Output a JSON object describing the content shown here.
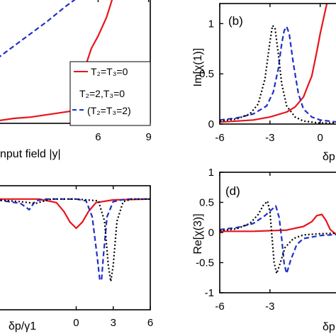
{
  "colors": {
    "red": "#e8141b",
    "blue": "#1f2fc6",
    "black": "#000000"
  },
  "legend": {
    "entries": [
      {
        "label": "T₂=T₃=0",
        "color": "#e8141b",
        "dash": "solid"
      },
      {
        "label": "T₂=2,T₃=0",
        "color": "#1f2fc6",
        "dash": "dashed"
      },
      {
        "label": "(T₂=T₃=2)",
        "color": "#1f2fc6",
        "dash": "none"
      }
    ]
  },
  "chart_data": [
    {
      "id": "a",
      "type": "line",
      "xlabel": "nput field |y|",
      "xlim": [
        0,
        9.1
      ],
      "ylim": [
        0,
        1
      ],
      "x_ticks": [
        6,
        9
      ],
      "x_tick_labels": [
        "6",
        "9"
      ],
      "series": [
        {
          "color": "#e8141b",
          "dash": "solid",
          "points": [
            [
              0.0,
              0.02
            ],
            [
              1.0,
              0.04
            ],
            [
              2.0,
              0.05
            ],
            [
              3.0,
              0.07
            ],
            [
              4.0,
              0.09
            ],
            [
              5.0,
              0.11
            ],
            [
              5.6,
              0.12
            ],
            [
              6.0,
              0.15
            ],
            [
              5.8,
              0.22
            ],
            [
              5.5,
              0.32
            ],
            [
              5.3,
              0.42
            ],
            [
              5.35,
              0.5
            ],
            [
              5.6,
              0.6
            ],
            [
              6.0,
              0.7
            ],
            [
              6.5,
              0.85
            ],
            [
              6.85,
              1.0
            ]
          ]
        },
        {
          "color": "#1f2fc6",
          "dash": "dashed",
          "points": [
            [
              0.0,
              0.52
            ],
            [
              1.0,
              0.62
            ],
            [
              2.0,
              0.72
            ],
            [
              3.0,
              0.82
            ],
            [
              4.0,
              0.93
            ],
            [
              4.7,
              1.0
            ]
          ]
        }
      ]
    },
    {
      "id": "b",
      "type": "line",
      "panel_label": "(b)",
      "ylabel": "Im[χ(1)]",
      "xlabel": "δp",
      "xlim": [
        -6,
        1.2
      ],
      "ylim": [
        0,
        1.2
      ],
      "x_ticks": [
        -6,
        -3,
        0
      ],
      "x_tick_labels": [
        "-6",
        "-3",
        "0"
      ],
      "y_ticks": [
        0,
        0.5,
        1
      ],
      "y_tick_labels": [
        "0",
        "0.5",
        "1"
      ],
      "series": [
        {
          "color": "#e8141b",
          "dash": "solid",
          "points": [
            [
              -6,
              0.02
            ],
            [
              -5,
              0.03
            ],
            [
              -4,
              0.04
            ],
            [
              -3,
              0.07
            ],
            [
              -2,
              0.12
            ],
            [
              -1.5,
              0.17
            ],
            [
              -1,
              0.27
            ],
            [
              -0.5,
              0.48
            ],
            [
              -0.2,
              0.72
            ],
            [
              0,
              0.9
            ],
            [
              0.2,
              1.05
            ],
            [
              0.4,
              1.2
            ]
          ]
        },
        {
          "color": "#1f2fc6",
          "dash": "dashed",
          "points": [
            [
              -6,
              0.04
            ],
            [
              -5,
              0.06
            ],
            [
              -4,
              0.1
            ],
            [
              -3.2,
              0.18
            ],
            [
              -2.8,
              0.32
            ],
            [
              -2.5,
              0.55
            ],
            [
              -2.3,
              0.8
            ],
            [
              -2.15,
              0.93
            ],
            [
              -2.0,
              0.97
            ],
            [
              -1.85,
              0.9
            ],
            [
              -1.6,
              0.6
            ],
            [
              -1.3,
              0.3
            ],
            [
              -1.0,
              0.15
            ],
            [
              -0.5,
              0.07
            ],
            [
              0,
              0.04
            ],
            [
              1,
              0.02
            ]
          ]
        },
        {
          "color": "#000000",
          "dash": "dotted",
          "points": [
            [
              -6,
              0.03
            ],
            [
              -5,
              0.05
            ],
            [
              -4.2,
              0.1
            ],
            [
              -3.7,
              0.2
            ],
            [
              -3.3,
              0.45
            ],
            [
              -3.0,
              0.82
            ],
            [
              -2.85,
              0.98
            ],
            [
              -2.7,
              0.96
            ],
            [
              -2.5,
              0.7
            ],
            [
              -2.3,
              0.4
            ],
            [
              -2.0,
              0.18
            ],
            [
              -1.5,
              0.07
            ],
            [
              -1,
              0.03
            ],
            [
              0,
              0.01
            ],
            [
              1,
              0.01
            ]
          ]
        }
      ]
    },
    {
      "id": "c",
      "type": "line",
      "xlabel": "δp/γ1",
      "xlim": [
        -6.4,
        6
      ],
      "ylim": [
        -1.25,
        0.15
      ],
      "x_ticks": [
        0,
        3,
        6
      ],
      "x_tick_labels": [
        "0",
        "3",
        "6"
      ],
      "series": [
        {
          "color": "#e8141b",
          "dash": "solid",
          "points": [
            [
              -6.4,
              0
            ],
            [
              -3,
              0
            ],
            [
              -1.6,
              -0.04
            ],
            [
              -1.0,
              -0.14
            ],
            [
              -0.5,
              -0.26
            ],
            [
              0,
              -0.33
            ],
            [
              0.5,
              -0.26
            ],
            [
              1.0,
              -0.14
            ],
            [
              1.6,
              -0.04
            ],
            [
              3,
              -0.01
            ],
            [
              6,
              0
            ]
          ]
        },
        {
          "color": "#1f2fc6",
          "dash": "dashed",
          "points": [
            [
              -6.4,
              -0.01
            ],
            [
              -4.5,
              -0.05
            ],
            [
              -3.8,
              -0.12
            ],
            [
              -3.3,
              -0.02
            ],
            [
              -2.5,
              0
            ],
            [
              0,
              0
            ],
            [
              0.8,
              -0.02
            ],
            [
              1.3,
              -0.2
            ],
            [
              1.7,
              -0.65
            ],
            [
              1.9,
              -0.9
            ],
            [
              2.05,
              -0.92
            ],
            [
              2.2,
              -0.65
            ],
            [
              2.5,
              -0.2
            ],
            [
              3,
              -0.03
            ],
            [
              4,
              0
            ],
            [
              6,
              0
            ]
          ]
        },
        {
          "color": "#000000",
          "dash": "dotted",
          "points": [
            [
              -6.4,
              -0.01
            ],
            [
              -4.5,
              -0.03
            ],
            [
              -3.3,
              -0.05
            ],
            [
              -2,
              0
            ],
            [
              0,
              0
            ],
            [
              1.8,
              -0.02
            ],
            [
              2.3,
              -0.25
            ],
            [
              2.6,
              -0.75
            ],
            [
              2.8,
              -0.93
            ],
            [
              3.0,
              -0.75
            ],
            [
              3.3,
              -0.25
            ],
            [
              3.8,
              -0.03
            ],
            [
              4.5,
              0
            ],
            [
              6,
              0
            ]
          ]
        }
      ]
    },
    {
      "id": "d",
      "type": "line",
      "panel_label": "(d)",
      "ylabel": "Re[χ(3)]",
      "xlabel": "δp",
      "xlim": [
        -6,
        1.2
      ],
      "ylim": [
        -1,
        1
      ],
      "x_ticks": [
        -6,
        -3
      ],
      "x_tick_labels": [
        "-6",
        "-3"
      ],
      "y_ticks": [
        -1,
        -0.5,
        0,
        0.5,
        1
      ],
      "y_tick_labels": [
        "-1",
        "-0.5",
        "0",
        "0.5",
        "1"
      ],
      "series": [
        {
          "color": "#e8141b",
          "dash": "solid",
          "points": [
            [
              -6,
              0.02
            ],
            [
              -4,
              0.02
            ],
            [
              -2,
              0.04
            ],
            [
              -1,
              0.1
            ],
            [
              -0.5,
              0.18
            ],
            [
              -0.2,
              0.28
            ],
            [
              0.1,
              0.3
            ],
            [
              0.35,
              0.2
            ],
            [
              0.6,
              0.05
            ],
            [
              0.9,
              -0.02
            ],
            [
              1.2,
              0
            ]
          ]
        },
        {
          "color": "#1f2fc6",
          "dash": "dashed",
          "points": [
            [
              -6,
              0.05
            ],
            [
              -5,
              0.08
            ],
            [
              -4,
              0.15
            ],
            [
              -3.3,
              0.28
            ],
            [
              -2.9,
              0.38
            ],
            [
              -2.65,
              0.44
            ],
            [
              -2.45,
              0.25
            ],
            [
              -2.3,
              -0.1
            ],
            [
              -2.15,
              -0.52
            ],
            [
              -2.0,
              -0.68
            ],
            [
              -1.75,
              -0.45
            ],
            [
              -1.4,
              -0.2
            ],
            [
              -1,
              -0.1
            ],
            [
              0,
              -0.05
            ],
            [
              1.2,
              -0.03
            ]
          ]
        },
        {
          "color": "#000000",
          "dash": "dotted",
          "points": [
            [
              -6,
              0.03
            ],
            [
              -5,
              0.06
            ],
            [
              -4.2,
              0.15
            ],
            [
              -3.7,
              0.3
            ],
            [
              -3.4,
              0.45
            ],
            [
              -3.15,
              0.52
            ],
            [
              -3.0,
              0.35
            ],
            [
              -2.9,
              0.0
            ],
            [
              -2.75,
              -0.5
            ],
            [
              -2.6,
              -0.68
            ],
            [
              -2.4,
              -0.52
            ],
            [
              -2.1,
              -0.25
            ],
            [
              -1.6,
              -0.1
            ],
            [
              -1,
              -0.04
            ],
            [
              0,
              -0.02
            ],
            [
              1.2,
              -0.01
            ]
          ]
        }
      ]
    }
  ]
}
